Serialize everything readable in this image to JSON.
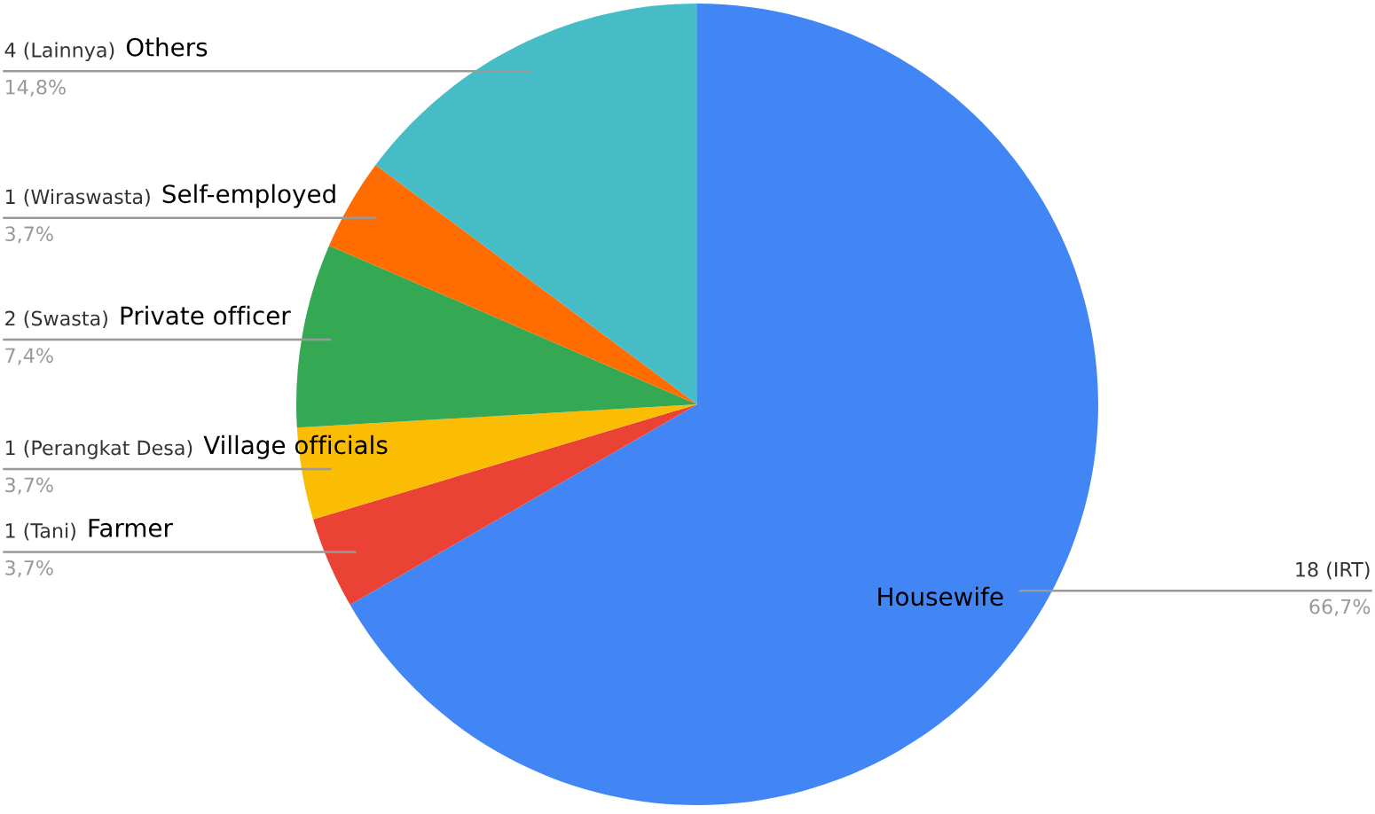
{
  "chart_data": {
    "type": "pie",
    "categories": [
      "Housewife",
      "Farmer",
      "Village officials",
      "Private officer",
      "Self-employed",
      "Others"
    ],
    "values": [
      18,
      1,
      1,
      2,
      1,
      4
    ],
    "colors": [
      "#4285f4",
      "#ea4335",
      "#fbbc04",
      "#34a853",
      "#ff6d01",
      "#46bdc6"
    ],
    "value_labels": [
      "18 (IRT)",
      "1 (Tani)",
      "1 (Perangkat Desa)",
      "2 (Swasta)",
      "1 (Wiraswasta)",
      "4 (Lainnya)"
    ],
    "annotations": [
      {
        "text": "66,7%",
        "x": "Housewife"
      },
      {
        "text": "3,7%",
        "x": "Farmer"
      },
      {
        "text": "3,7%",
        "x": "Village officials"
      },
      {
        "text": "7,4%",
        "x": "Private officer"
      },
      {
        "text": "3,7%",
        "x": "Self-employed"
      },
      {
        "text": "14,8%",
        "x": "Others"
      }
    ],
    "legend": false
  }
}
